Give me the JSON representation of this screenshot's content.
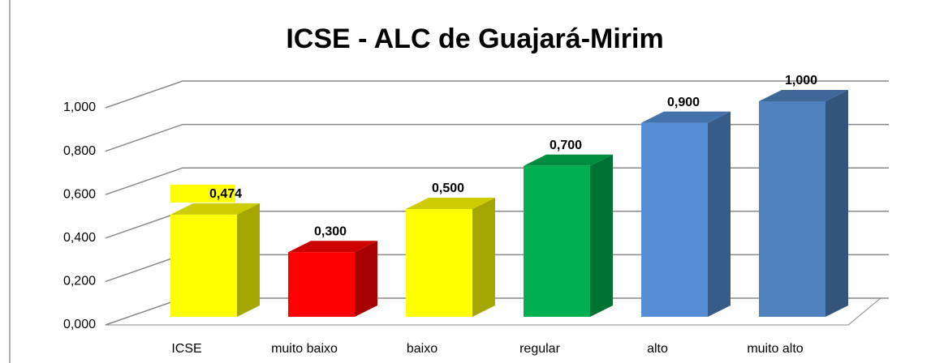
{
  "chart_data": {
    "type": "bar3d",
    "title": "ICSE - ALC de Guajará-Mirim",
    "categories": [
      "ICSE",
      "muito baixo",
      "baixo",
      "regular",
      "alto",
      "muito alto"
    ],
    "values": [
      0.474,
      0.3,
      0.5,
      0.7,
      0.9,
      1.0
    ],
    "value_labels": [
      "0,474",
      "0,300",
      "0,500",
      "0,700",
      "0,900",
      "1,000"
    ],
    "colors": [
      "#ffff00",
      "#ff0000",
      "#ffff00",
      "#00b050",
      "#558ed5",
      "#4f81bd"
    ],
    "ylim": [
      0,
      1.0
    ],
    "yticks": [
      {
        "value": 0,
        "label": "0,000"
      },
      {
        "value": 0.2,
        "label": "0,200"
      },
      {
        "value": 0.4,
        "label": "0,400"
      },
      {
        "value": 0.6,
        "label": "0,600"
      },
      {
        "value": 0.8,
        "label": "0,800"
      },
      {
        "value": 1.0,
        "label": "1,000"
      }
    ],
    "grid": true
  }
}
